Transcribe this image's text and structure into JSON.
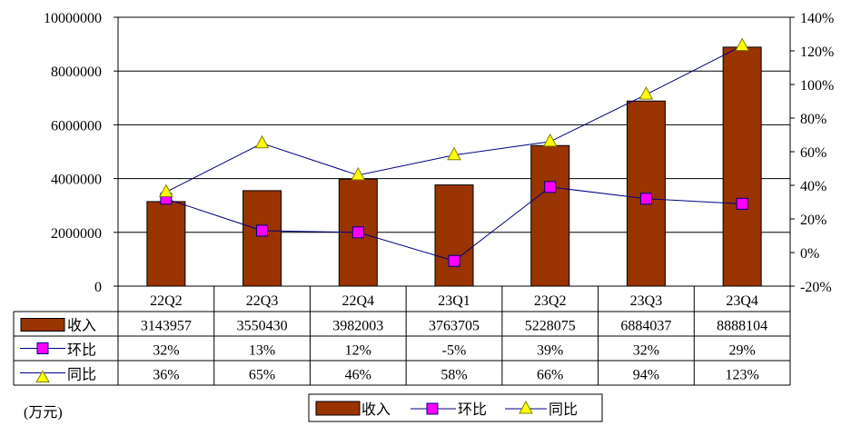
{
  "chart_data": {
    "type": "bar",
    "categories": [
      "22Q2",
      "22Q3",
      "22Q4",
      "23Q1",
      "23Q2",
      "23Q3",
      "23Q4"
    ],
    "series": [
      {
        "name": "收入",
        "kind": "bar",
        "axis": "left",
        "color": "#993300",
        "values": [
          3143957,
          3550430,
          3982003,
          3763705,
          5228075,
          6884037,
          8888104
        ],
        "labels": [
          "3143957",
          "3550430",
          "3982003",
          "3763705",
          "5228075",
          "6884037",
          "8888104"
        ]
      },
      {
        "name": "环比",
        "kind": "line",
        "axis": "right",
        "color": "#000080",
        "marker": "square",
        "marker_color": "#FF00FF",
        "values": [
          32,
          13,
          12,
          -5,
          39,
          32,
          29
        ],
        "labels": [
          "32%",
          "13%",
          "12%",
          "-5%",
          "39%",
          "32%",
          "29%"
        ]
      },
      {
        "name": "同比",
        "kind": "line",
        "axis": "right",
        "color": "#000080",
        "marker": "triangle",
        "marker_color": "#FFFF00",
        "values": [
          36,
          65,
          46,
          58,
          66,
          94,
          123
        ],
        "labels": [
          "36%",
          "65%",
          "46%",
          "58%",
          "66%",
          "94%",
          "123%"
        ]
      }
    ],
    "left_axis": {
      "ylim": [
        0,
        10000000
      ],
      "ticks": [
        "0",
        "2000000",
        "4000000",
        "6000000",
        "8000000",
        "10000000"
      ]
    },
    "right_axis": {
      "ylim": [
        -20,
        140
      ],
      "ticks": [
        "-20%",
        "0%",
        "20%",
        "40%",
        "60%",
        "80%",
        "100%",
        "120%",
        "140%"
      ]
    },
    "unit_note": "(万元)",
    "grid": true,
    "legend": "bottom",
    "data_table": true
  }
}
